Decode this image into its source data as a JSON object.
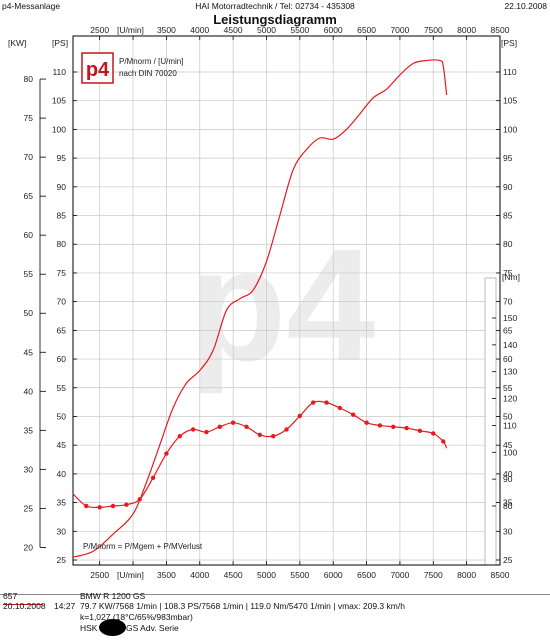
{
  "header": {
    "left": "p4-Messanlage",
    "center": "HAI Motorradtechnik  /  Tel: 02734 - 435308",
    "date": "22.10.2008",
    "title": "Leistungsdiagramm"
  },
  "watermark": "p4",
  "legend": {
    "logo": "p4",
    "line1": "P/Mnorm / [U/min]",
    "line2": "nach DIN 70020",
    "formula": "P/Mnorm = P/Mgem + P/MVerlust"
  },
  "footer": {
    "id": "657",
    "vehicle": "BMW  R 1200 GS",
    "date": "20.10.2008",
    "time": "14:27",
    "results": "79.7 KW/7568 1/min  |  108.3 PS/7568 1/min  |  119.0 Nm/5470 1/min  | vmax: 209.3 km/h",
    "correction": "k=1,027 (18°C/65%/983mbar)",
    "hsk_prefix": "HSK",
    "hsk_text": "GS Adv. Serie"
  },
  "colors": {
    "curve": "#e8191f",
    "grid": "#c8c8c8",
    "frame": "#000000"
  },
  "chart_data": {
    "type": "line",
    "title": "Leistungsdiagramm",
    "xlabel": "[U/min]",
    "x_ticks": [
      2500,
      3000,
      3500,
      4000,
      4500,
      5000,
      5500,
      6000,
      6500,
      7000,
      7500,
      8000,
      8500
    ],
    "xlim": [
      2100,
      8500
    ],
    "axes": {
      "kw": {
        "label": "[KW]",
        "ticks": [
          20,
          25,
          30,
          35,
          40,
          45,
          50,
          55,
          60,
          65,
          70,
          75,
          80
        ]
      },
      "ps": {
        "label": "[PS]",
        "ticks": [
          25,
          30,
          35,
          40,
          45,
          50,
          55,
          60,
          65,
          70,
          75,
          80,
          85,
          90,
          95,
          100,
          105,
          110
        ]
      },
      "nm": {
        "label": "[Nm]",
        "ticks": [
          80,
          90,
          100,
          110,
          120,
          130,
          140,
          150
        ]
      }
    },
    "grid": true,
    "series": [
      {
        "unit": "PS",
        "x": [
          2100,
          2400,
          2700,
          3000,
          3200,
          3400,
          3600,
          3800,
          4000,
          4200,
          4400,
          4600,
          4800,
          5000,
          5200,
          5400,
          5600,
          5800,
          6000,
          6200,
          6400,
          6600,
          6800,
          7000,
          7200,
          7400,
          7600,
          7650,
          7700
        ],
        "values": [
          25.5,
          26.5,
          29.5,
          33,
          38.5,
          45,
          51.5,
          55.8,
          58,
          61.5,
          68.5,
          70.5,
          72,
          77,
          85,
          93,
          96.5,
          98.5,
          98.3,
          100,
          102.7,
          105.5,
          107,
          109.5,
          111.5,
          112,
          112,
          111,
          106
        ]
      },
      {
        "unit": "Nm",
        "markers": true,
        "x": [
          2100,
          2300,
          2500,
          2700,
          2900,
          3100,
          3300,
          3500,
          3700,
          3900,
          4100,
          4300,
          4500,
          4700,
          4900,
          5100,
          5300,
          5500,
          5700,
          5900,
          6100,
          6300,
          6500,
          6700,
          6900,
          7100,
          7300,
          7500,
          7650,
          7700
        ],
        "values": [
          84.5,
          80,
          79.5,
          80,
          80.5,
          82.5,
          90.5,
          99.5,
          106,
          108.5,
          107.5,
          109.5,
          111,
          109.5,
          106.5,
          106,
          108.5,
          113.5,
          118.5,
          118.5,
          116.5,
          114,
          111,
          110,
          109.5,
          109,
          108,
          107,
          104,
          101.5
        ]
      }
    ]
  }
}
